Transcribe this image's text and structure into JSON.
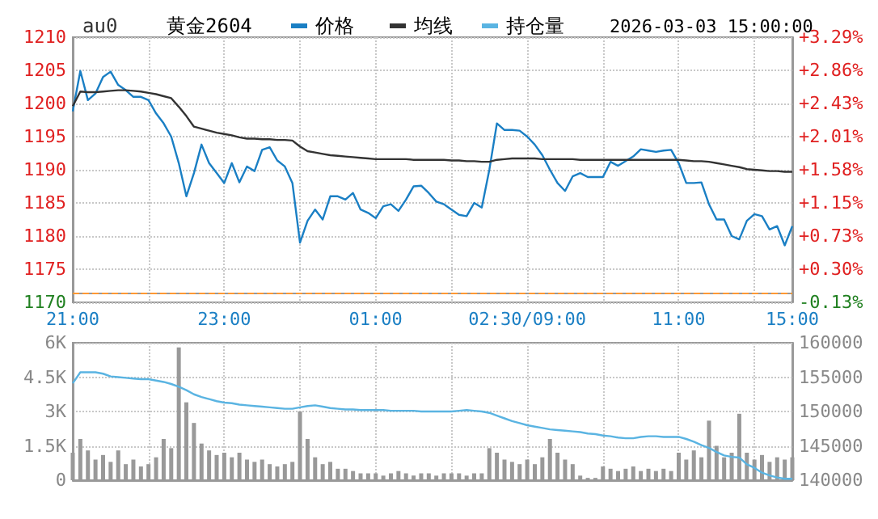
{
  "chart_data": [
    {
      "type": "line",
      "title": "黄金2604",
      "subtitle": "au0",
      "annotations": [
        "2026-03-03 15:00:00"
      ],
      "categories": [
        "21:00",
        null,
        null,
        null,
        null,
        null,
        null,
        null,
        null,
        null,
        null,
        null,
        null,
        null,
        null,
        null,
        null,
        null,
        null,
        null,
        "23:00",
        null,
        null,
        null,
        null,
        null,
        null,
        null,
        null,
        null,
        null,
        null,
        null,
        null,
        null,
        null,
        null,
        null,
        null,
        null,
        "01:00",
        null,
        null,
        null,
        null,
        null,
        null,
        null,
        null,
        null,
        null,
        null,
        null,
        null,
        null,
        null,
        null,
        null,
        null,
        null,
        "02:30/09:00",
        null,
        null,
        null,
        null,
        null,
        null,
        null,
        null,
        null,
        null,
        null,
        null,
        null,
        null,
        null,
        null,
        null,
        null,
        null,
        "11:00",
        null,
        null,
        null,
        null,
        null,
        null,
        null,
        null,
        null,
        null,
        null,
        null,
        null,
        null,
        "15:00"
      ],
      "series": [
        {
          "name": "价格",
          "color": "#1a7fc4",
          "values": [
            1198.8,
            1204.9,
            1200.5,
            1201.5,
            1204,
            1204.8,
            1202.8,
            1202,
            1201,
            1201,
            1200.5,
            1198.5,
            1197,
            1195,
            1191,
            1186,
            1189.5,
            1193.8,
            1191,
            1189.5,
            1188,
            1191,
            1188.1,
            1190.5,
            1189.8,
            1193,
            1193.4,
            1191.4,
            1190.5,
            1188,
            1179,
            1182.3,
            1184,
            1182.5,
            1186,
            1186,
            1185.5,
            1186.5,
            1184,
            1183.5,
            1182.7,
            1184.5,
            1184.8,
            1183.8,
            1185.5,
            1187.5,
            1187.6,
            1186.5,
            1185.2,
            1184.8,
            1184,
            1183.2,
            1183,
            1185,
            1184.3,
            1190,
            1197,
            1196,
            1196,
            1195.9,
            1195,
            1193.8,
            1192.2,
            1190,
            1188,
            1186.8,
            1189,
            1189.5,
            1188.9,
            1188.9,
            1188.9,
            1191.2,
            1190.6,
            1191.3,
            1192,
            1193.1,
            1192.9,
            1192.7,
            1192.9,
            1193,
            1191,
            1188,
            1188,
            1188.1,
            1184.8,
            1182.5,
            1182.5,
            1180,
            1179.5,
            1182.3,
            1183.3,
            1183,
            1181,
            1181.5,
            1178.6,
            1181.5
          ]
        },
        {
          "name": "均线",
          "color": "#333333",
          "values": [
            1199.6,
            1201.8,
            1201.7,
            1201.7,
            1201.8,
            1201.9,
            1202,
            1202,
            1201.9,
            1201.8,
            1201.6,
            1201.4,
            1201.1,
            1200.8,
            1199.5,
            1198.1,
            1196.5,
            1196.2,
            1195.9,
            1195.6,
            1195.4,
            1195.2,
            1194.9,
            1194.7,
            1194.7,
            1194.6,
            1194.6,
            1194.5,
            1194.5,
            1194.4,
            1193.5,
            1192.8,
            1192.6,
            1192.4,
            1192.2,
            1192.1,
            1192,
            1191.9,
            1191.8,
            1191.7,
            1191.6,
            1191.6,
            1191.6,
            1191.6,
            1191.6,
            1191.5,
            1191.5,
            1191.5,
            1191.5,
            1191.5,
            1191.4,
            1191.4,
            1191.3,
            1191.3,
            1191.2,
            1191.2,
            1191.5,
            1191.6,
            1191.7,
            1191.7,
            1191.7,
            1191.7,
            1191.6,
            1191.6,
            1191.6,
            1191.6,
            1191.6,
            1191.5,
            1191.5,
            1191.5,
            1191.5,
            1191.5,
            1191.5,
            1191.5,
            1191.5,
            1191.5,
            1191.5,
            1191.5,
            1191.5,
            1191.5,
            1191.5,
            1191.4,
            1191.3,
            1191.3,
            1191.2,
            1191,
            1190.8,
            1190.6,
            1190.4,
            1190.1,
            1190,
            1189.9,
            1189.8,
            1189.8,
            1189.7,
            1189.7
          ]
        }
      ],
      "ylim": [
        1170,
        1210
      ],
      "yticks": [
        1170,
        1175,
        1180,
        1185,
        1190,
        1195,
        1200,
        1205,
        1210
      ],
      "y2lim": [
        -0.13,
        3.29
      ],
      "y2ticks": [
        {
          "value": -0.13,
          "label": "-0.13%"
        },
        {
          "value": 0.3,
          "label": "+0.30%"
        },
        {
          "value": 0.73,
          "label": "+0.73%"
        },
        {
          "value": 1.15,
          "label": "+1.15%"
        },
        {
          "value": 1.58,
          "label": "+1.58%"
        },
        {
          "value": 2.01,
          "label": "+2.01%"
        },
        {
          "value": 2.43,
          "label": "+2.43%"
        },
        {
          "value": 2.86,
          "label": "+2.86%"
        },
        {
          "value": 3.29,
          "label": "+3.29%"
        }
      ],
      "ref_lines": [
        {
          "axis": "y",
          "value": 1171.5,
          "color": "#ff9933",
          "line_style": "dashed"
        }
      ],
      "grid": true,
      "legend": "top",
      "marker": "none",
      "line_style": "solid"
    },
    {
      "type": "bar",
      "tick_labels": "y",
      "categories": [
        null,
        null,
        null,
        null,
        null,
        null,
        null,
        null,
        null,
        null,
        null,
        null,
        null,
        null,
        null,
        null,
        null,
        null,
        null,
        null,
        null,
        null,
        null,
        null,
        null,
        null,
        null,
        null,
        null,
        null,
        null,
        null,
        null,
        null,
        null,
        null,
        null,
        null,
        null,
        null,
        null,
        null,
        null,
        null,
        null,
        null,
        null,
        null,
        null,
        null,
        null,
        null,
        null,
        null,
        null,
        null,
        null,
        null,
        null,
        null,
        null,
        null,
        null,
        null,
        null,
        null,
        null,
        null,
        null,
        null,
        null,
        null,
        null,
        null,
        null,
        null,
        null,
        null,
        null,
        null,
        null,
        null,
        null,
        null,
        null,
        null,
        null,
        null,
        null,
        null,
        null,
        null,
        null,
        null,
        null,
        null
      ],
      "series": [
        {
          "color": "#999999",
          "values": [
            1200,
            1800,
            1300,
            900,
            1100,
            800,
            1300,
            700,
            900,
            600,
            700,
            1000,
            1800,
            1400,
            5800,
            3400,
            2500,
            1600,
            1300,
            1100,
            1200,
            1000,
            1200,
            900,
            800,
            900,
            700,
            600,
            700,
            800,
            3000,
            1800,
            1000,
            700,
            800,
            500,
            500,
            400,
            300,
            300,
            300,
            200,
            300,
            400,
            300,
            200,
            300,
            300,
            200,
            300,
            300,
            300,
            200,
            300,
            300,
            1400,
            1200,
            900,
            800,
            700,
            900,
            700,
            1000,
            1800,
            1200,
            900,
            700,
            200,
            100,
            100,
            600,
            500,
            400,
            500,
            600,
            400,
            500,
            400,
            500,
            400,
            1200,
            900,
            1300,
            1000,
            2600,
            1500,
            1000,
            1200,
            2900,
            1200,
            900,
            1100,
            800,
            1000,
            900,
            1000
          ]
        },
        {
          "type": "line",
          "name": "持仓量",
          "color": "#5ab4e2",
          "axis": "y2",
          "values": [
            154100,
            155700,
            155700,
            155700,
            155500,
            155100,
            155000,
            154900,
            154800,
            154700,
            154700,
            154500,
            154300,
            154000,
            153600,
            153100,
            152500,
            152100,
            151800,
            151500,
            151300,
            151200,
            151000,
            150900,
            150800,
            150700,
            150600,
            150500,
            150400,
            150400,
            150600,
            150800,
            150900,
            150700,
            150500,
            150400,
            150300,
            150300,
            150200,
            150200,
            150200,
            150200,
            150100,
            150100,
            150100,
            150100,
            150000,
            150000,
            150000,
            150000,
            150000,
            150100,
            150200,
            150100,
            150000,
            149800,
            149400,
            149000,
            148600,
            148300,
            148000,
            147800,
            147600,
            147400,
            147300,
            147200,
            147100,
            147000,
            146800,
            146700,
            146500,
            146400,
            146200,
            146100,
            146100,
            146300,
            146400,
            146400,
            146300,
            146300,
            146300,
            146000,
            145600,
            145100,
            144700,
            144100,
            143600,
            143400,
            143300,
            142300,
            141800,
            141100,
            140700,
            140400,
            140200,
            140200
          ]
        }
      ],
      "ylim": [
        0,
        6000
      ],
      "yticks": [
        0,
        {
          "value": 1500,
          "label": "1.5K"
        },
        {
          "value": 3000,
          "label": "3K"
        },
        {
          "value": 4500,
          "label": "4.5K"
        },
        {
          "value": 6000,
          "label": "6K"
        }
      ],
      "y2lim": [
        140000,
        160000
      ],
      "y2ticks": [
        140000,
        145000,
        150000,
        155000,
        160000
      ],
      "grid": true,
      "legend": "top",
      "marker": "none",
      "line_style": "solid"
    }
  ]
}
